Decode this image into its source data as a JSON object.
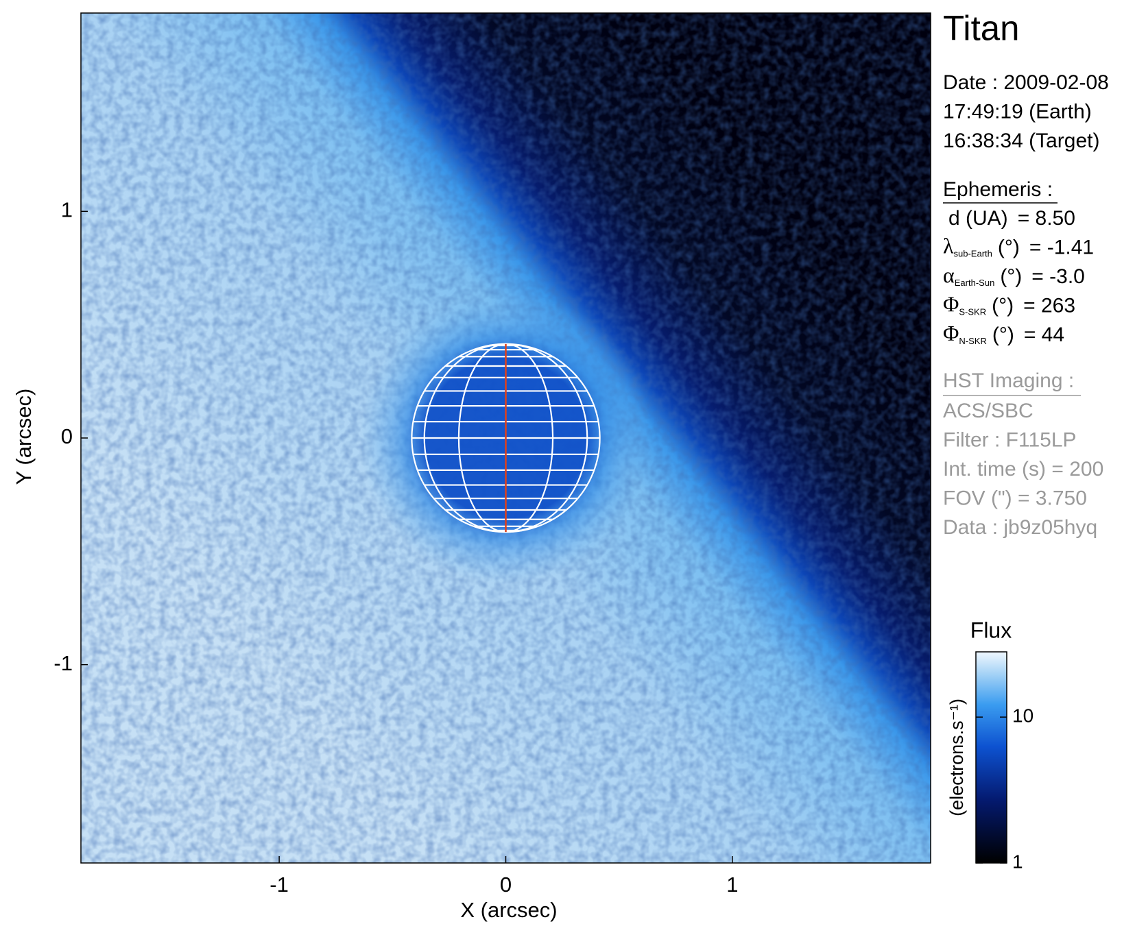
{
  "chart_data": {
    "type": "image",
    "title": "Titan",
    "xlabel": "X (arcsec)",
    "ylabel": "Y (arcsec)",
    "xlim": [
      -1.875,
      1.875
    ],
    "ylim": [
      -1.875,
      1.875
    ],
    "xticks": [
      -1,
      0,
      1
    ],
    "yticks": [
      -1,
      0,
      1
    ],
    "disk": {
      "x": 0,
      "y": 0,
      "radius": 0.415
    },
    "colorbar": {
      "label": "Flux",
      "unit": "(electrons.s⁻¹)",
      "log": true,
      "lim": [
        1,
        28
      ],
      "ticks": [
        1,
        10
      ]
    }
  },
  "info": {
    "date": [
      "Date : 2009-02-08",
      "17:49:19 (Earth)",
      "16:38:34 (Target)"
    ],
    "ephemeris": {
      "title": "Ephemeris :",
      "rows": [
        {
          "label": "d (UA)",
          "value": "= 8.50"
        },
        {
          "symbol": "λ",
          "sub": "sub-Earth",
          "label": "(°)",
          "value": "= -1.41"
        },
        {
          "symbol": "α",
          "sub": "Earth-Sun",
          "label": "(°)",
          "value": "= -3.0"
        },
        {
          "symbol": "Φ",
          "sub": "S-SKR",
          "label": "(°)",
          "value": "= 263"
        },
        {
          "symbol": "Φ",
          "sub": "N-SKR",
          "label": "(°)",
          "value": "= 44"
        }
      ]
    },
    "hst": {
      "title": "HST Imaging :",
      "rows": [
        "ACS/SBC",
        "Filter : F115LP",
        "Int. time (s) = 200",
        "FOV (\") = 3.750",
        "Data : jb9z05hyq"
      ]
    }
  }
}
